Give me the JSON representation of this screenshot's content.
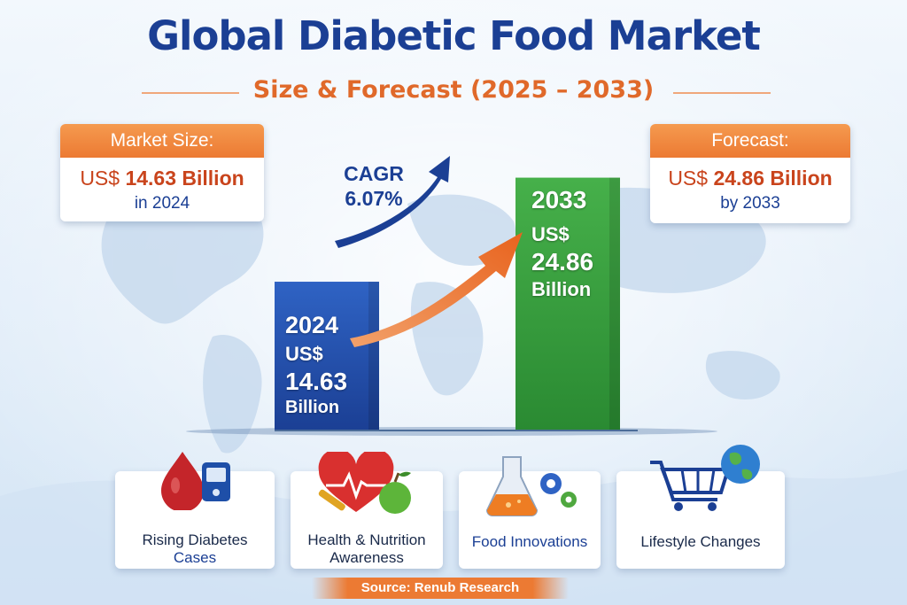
{
  "title": "Global Diabetic Food Market",
  "subtitle": "Size & Forecast (2025 – 2033)",
  "market_size_card": {
    "header": "Market Size:",
    "currency": "US$",
    "value": "14.63 Billion",
    "period": "in 2024"
  },
  "forecast_card": {
    "header": "Forecast:",
    "currency": "US$",
    "value": "24.86 Billion",
    "period": "by 2033"
  },
  "chart_data": {
    "type": "bar",
    "categories": [
      "2024",
      "2033"
    ],
    "values": [
      14.63,
      24.86
    ],
    "value_labels": [
      {
        "year": "2024",
        "currency": "US$",
        "amount": "14.63",
        "unit": "Billion"
      },
      {
        "year": "2033",
        "currency": "US$",
        "amount": "24.86",
        "unit": "Billion"
      }
    ],
    "bar_colors": [
      "#2352b0",
      "#3a9c3e"
    ],
    "annotation": {
      "label": "CAGR",
      "value": "6.07%"
    },
    "title": "",
    "xlabel": "",
    "ylabel": "",
    "ylim": [
      0,
      27
    ],
    "grid": false
  },
  "drivers": [
    {
      "label_line1": "Rising Diabetes",
      "label_line2": "Cases",
      "icon": "blood-drop-glucometer-icon"
    },
    {
      "label_line1": "Health & Nutrition",
      "label_line2": "Awareness",
      "icon": "heart-apple-icon"
    },
    {
      "label_line1": "Food Innovations",
      "label_line2": "",
      "icon": "flask-gears-icon"
    },
    {
      "label_line1": "Lifestyle Changes",
      "label_line2": "",
      "icon": "cart-globe-icon"
    }
  ],
  "source": "Source: Renub Research",
  "colors": {
    "title_blue": "#1b3f94",
    "accent_orange": "#ec7a33",
    "value_red": "#c9441c",
    "bar_blue": "#2352b0",
    "bar_green": "#3a9c3e"
  }
}
